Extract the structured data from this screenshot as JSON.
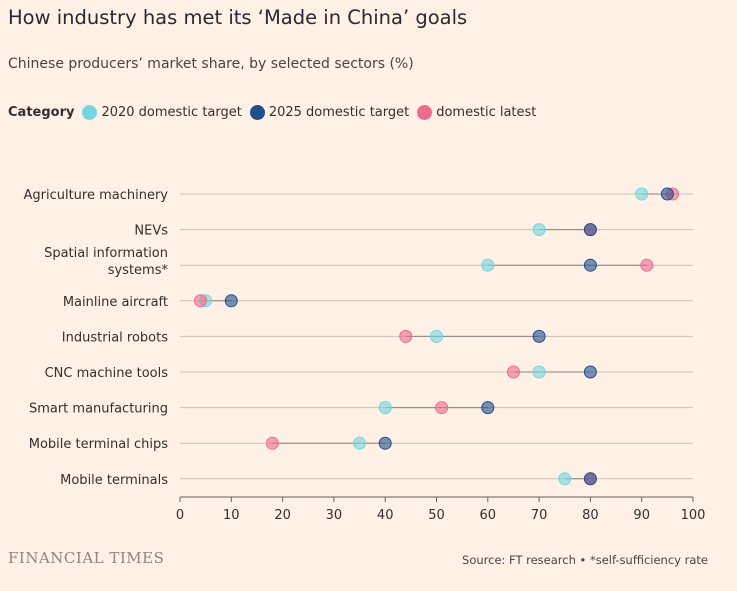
{
  "chart_data": {
    "type": "dot-plot",
    "title": "How industry has met its ‘Made in China’ goals",
    "subtitle": "Chinese producers’ market share, by selected sectors (%)",
    "legend_title": "Category",
    "series": [
      {
        "name": "2020 domestic target",
        "color": "#73d6e0",
        "values": [
          90,
          70,
          60,
          5,
          50,
          70,
          40,
          35,
          75
        ]
      },
      {
        "name": "2025 domestic target",
        "color": "#1f4e8c",
        "values": [
          95,
          80,
          80,
          10,
          70,
          80,
          60,
          40,
          80
        ]
      },
      {
        "name": "domestic latest",
        "color": "#ef6b8e",
        "values": [
          96,
          80,
          91,
          4,
          44,
          65,
          51,
          18,
          80
        ]
      }
    ],
    "categories": [
      [
        "Agriculture machinery"
      ],
      [
        "NEVs"
      ],
      [
        "Spatial information",
        "systems*"
      ],
      [
        "Mainline aircraft"
      ],
      [
        "Industrial robots"
      ],
      [
        "CNC machine tools"
      ],
      [
        "Smart manufacturing"
      ],
      [
        "Mobile terminal chips"
      ],
      [
        "Mobile terminals"
      ]
    ],
    "xlim": [
      0,
      100
    ],
    "xticks": [
      "0",
      "10",
      "20",
      "30",
      "40",
      "50",
      "60",
      "70",
      "80",
      "90",
      "100"
    ],
    "grid": "horizontal",
    "legend_position": "top"
  },
  "footer": {
    "logo": "FINANCIAL TIMES",
    "source": "Source: FT research • *self-sufficiency rate"
  }
}
